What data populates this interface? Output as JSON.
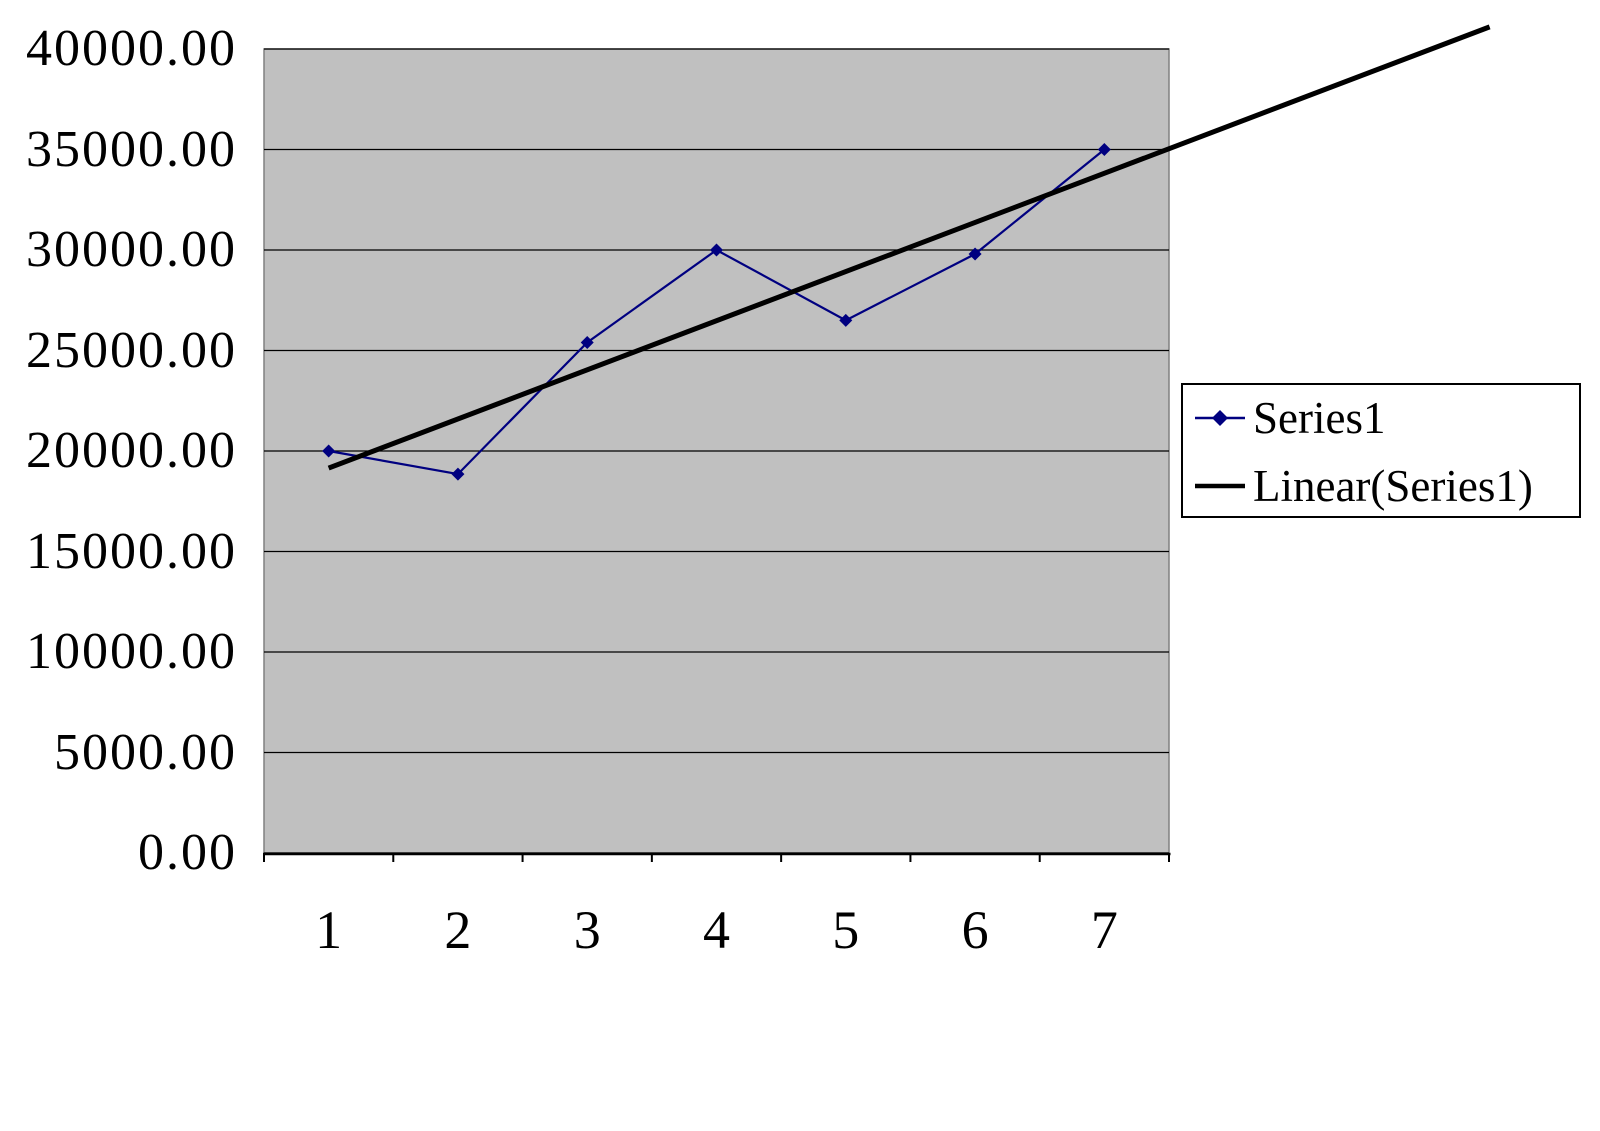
{
  "chart_data": {
    "type": "line",
    "title": "",
    "xlabel": "",
    "ylabel": "",
    "categories": [
      "1",
      "2",
      "3",
      "4",
      "5",
      "6",
      "7"
    ],
    "series": [
      {
        "name": "Series1",
        "values": [
          20000,
          18850,
          25400,
          30000,
          26500,
          29800,
          35000
        ],
        "color": "#000080",
        "marker": "diamond"
      }
    ],
    "trendline": {
      "name": "Linear(Series1)",
      "color": "#000000",
      "start_x": 1,
      "start_value": 19150,
      "end_x": 9.98,
      "end_value": 41100
    },
    "ylim": [
      0,
      40000
    ],
    "ytick_step": 5000,
    "yticks": [
      "40000.00",
      "35000.00",
      "30000.00",
      "25000.00",
      "20000.00",
      "15000.00",
      "10000.00",
      "5000.00",
      "0.00"
    ],
    "xticks": [
      "1",
      "2",
      "3",
      "4",
      "5",
      "6",
      "7"
    ],
    "grid": "horizontal",
    "plot_bg": "#c0c0c0",
    "plot_border": "#808080",
    "gridline_color": "#000000",
    "axis_color": "#000000",
    "legend": {
      "position": "right",
      "border_color": "#000000",
      "entries": [
        {
          "label": "Series1",
          "type": "line-marker",
          "color": "#000080"
        },
        {
          "label": "Linear(Series1)",
          "type": "line",
          "color": "#000000"
        }
      ]
    }
  }
}
